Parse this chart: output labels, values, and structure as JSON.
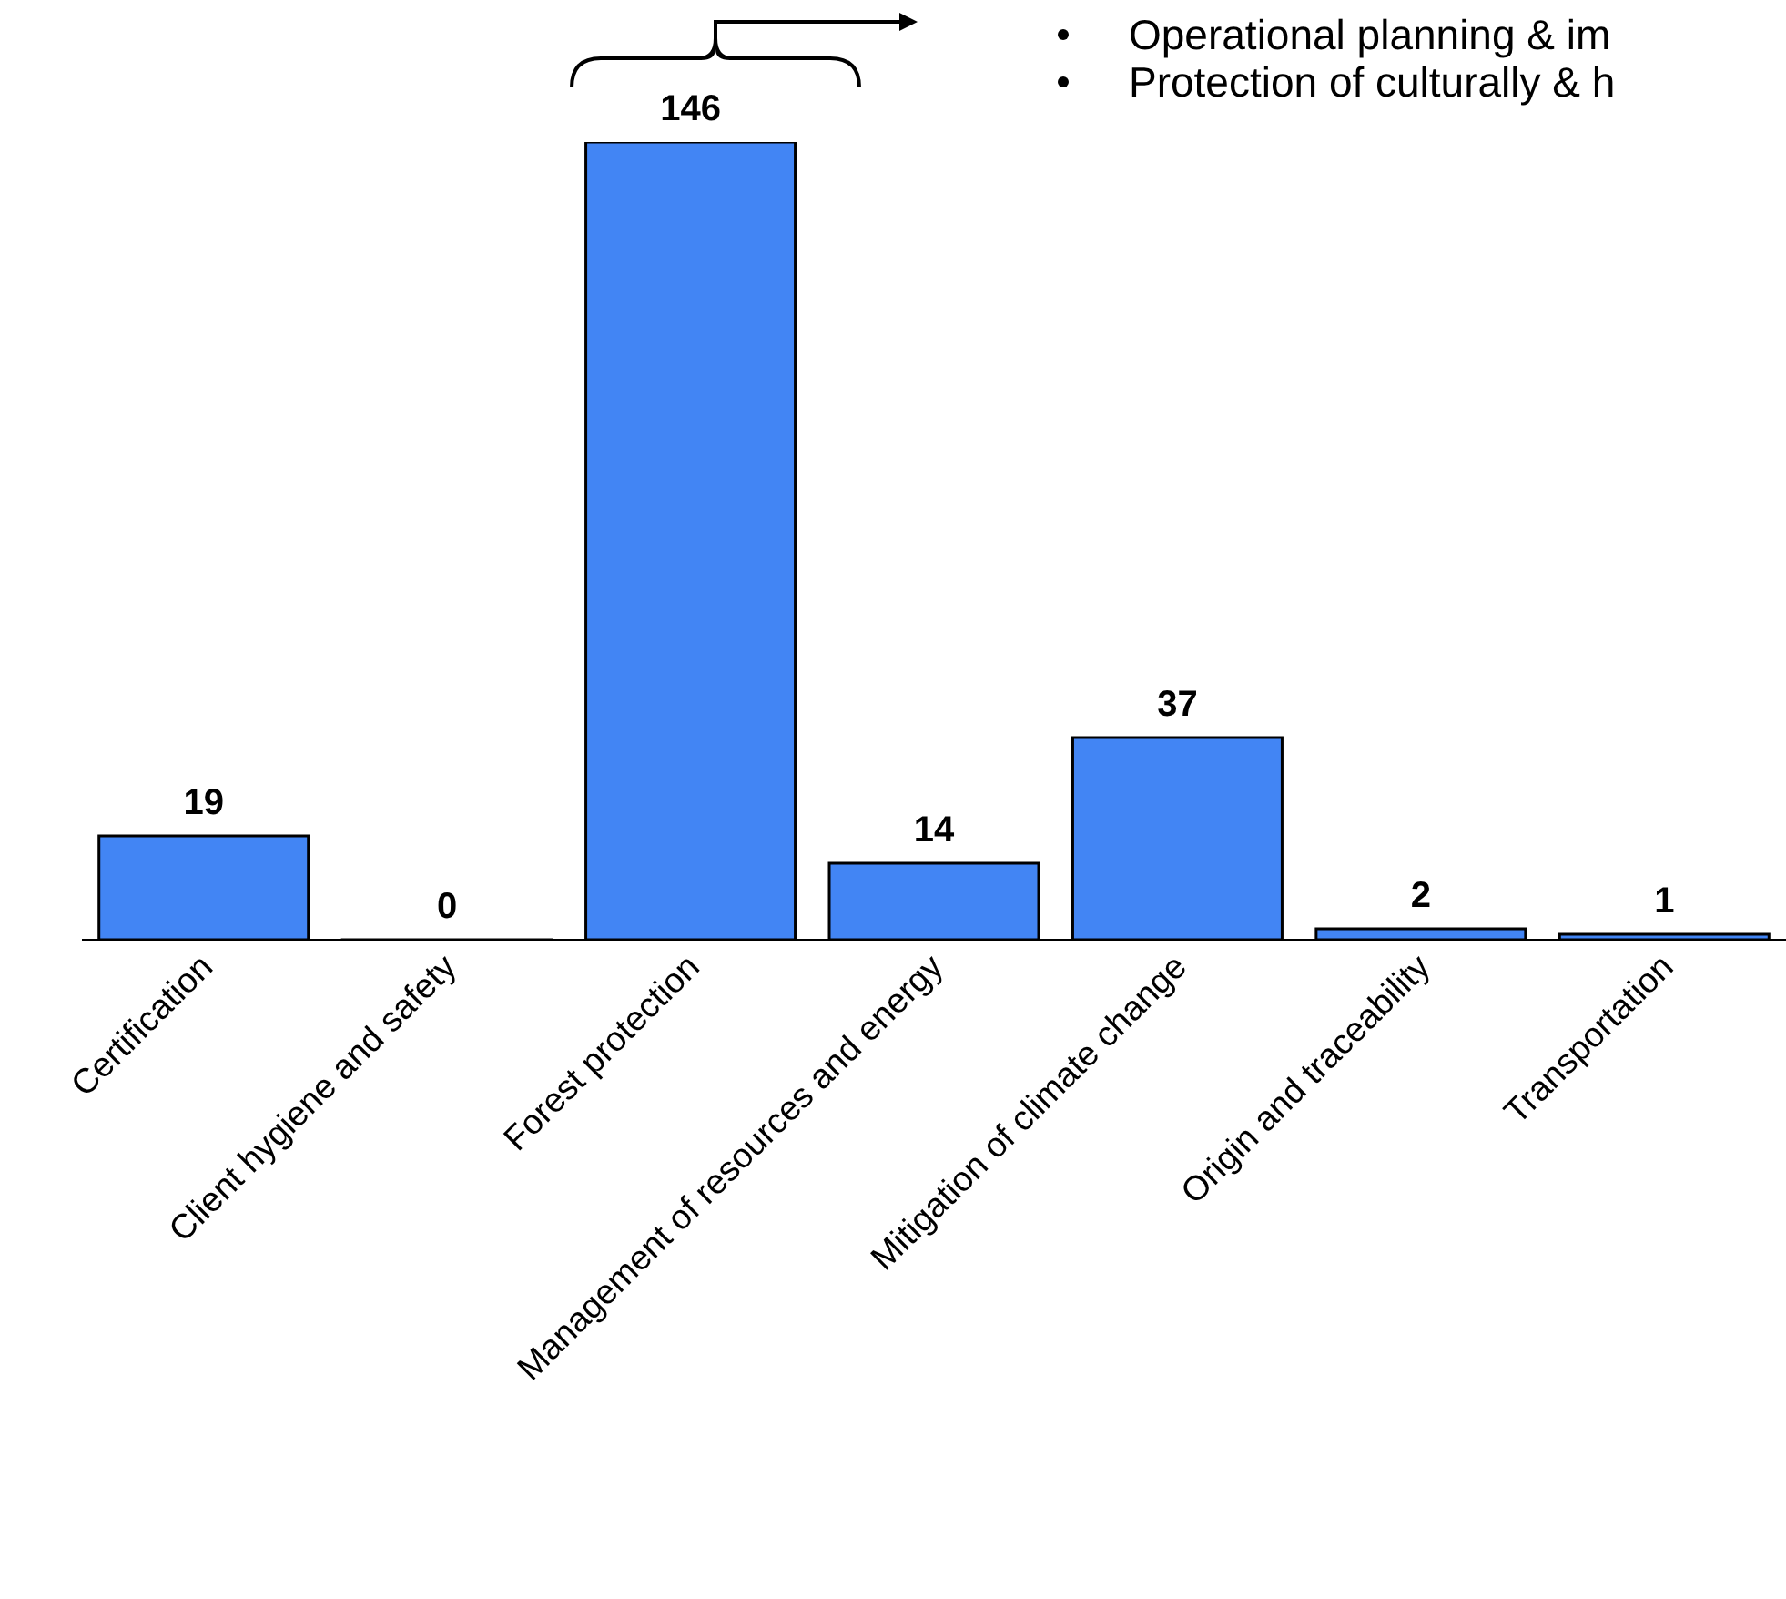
{
  "chart_data": {
    "type": "bar",
    "categories": [
      "Certification",
      "Client hygiene and safety",
      "Forest protection",
      "Management of resources and energy",
      "Mitigation of climate change",
      "Origin and traceability",
      "Transportation"
    ],
    "values": [
      19,
      0,
      146,
      14,
      37,
      2,
      1
    ],
    "color": "#4285f4",
    "data_labels": true,
    "grid": false,
    "legend": false,
    "annotations": [
      "Operational planning & im",
      "Protection of culturally & h"
    ]
  }
}
